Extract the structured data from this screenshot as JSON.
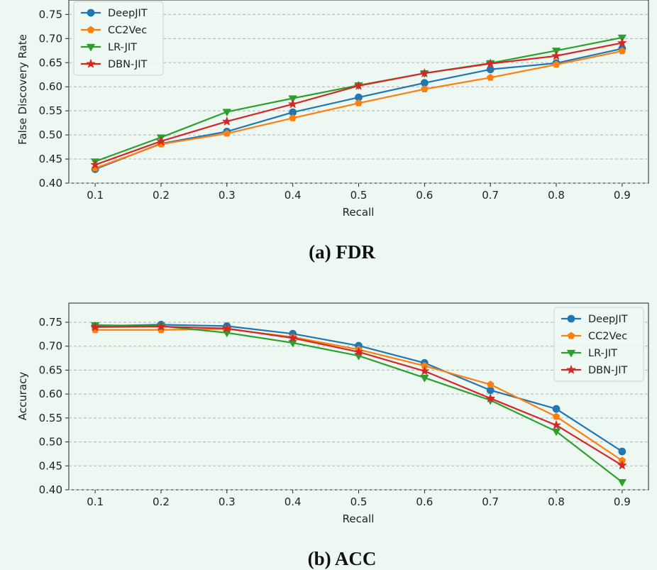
{
  "colors": {
    "DeepJIT": "#1f77b4",
    "CC2Vec": "#ff7f0e",
    "LR-JIT": "#2ca02c",
    "DBN-JIT": "#d62728"
  },
  "chart_data": [
    {
      "type": "line",
      "caption": "(a) FDR",
      "xlabel": "Recall",
      "ylabel": "False Discovery Rate",
      "x": [
        0.1,
        0.2,
        0.3,
        0.4,
        0.5,
        0.6,
        0.7,
        0.8,
        0.9
      ],
      "x_ticks": [
        "0.1",
        "0.2",
        "0.3",
        "0.4",
        "0.5",
        "0.6",
        "0.7",
        "0.8",
        "0.9"
      ],
      "ylim": [
        0.4,
        0.78
      ],
      "y_ticks": [
        "0.40",
        "0.45",
        "0.50",
        "0.55",
        "0.60",
        "0.65",
        "0.70",
        "0.75"
      ],
      "grid": "horizontal dashed",
      "legend": "top-left",
      "series": [
        {
          "name": "DeepJIT",
          "marker": "circle",
          "values": [
            0.429,
            0.482,
            0.507,
            0.547,
            0.578,
            0.608,
            0.636,
            0.649,
            0.679
          ]
        },
        {
          "name": "CC2Vec",
          "marker": "pentagon",
          "values": [
            0.431,
            0.481,
            0.503,
            0.535,
            0.566,
            0.595,
            0.619,
            0.646,
            0.674
          ]
        },
        {
          "name": "LR-JIT",
          "marker": "triangle-down",
          "values": [
            0.445,
            0.495,
            0.548,
            0.576,
            0.603,
            0.628,
            0.649,
            0.675,
            0.702
          ]
        },
        {
          "name": "DBN-JIT",
          "marker": "star",
          "values": [
            0.438,
            0.487,
            0.528,
            0.564,
            0.602,
            0.628,
            0.648,
            0.664,
            0.691
          ]
        }
      ]
    },
    {
      "type": "line",
      "caption": "(b) ACC",
      "xlabel": "Recall",
      "ylabel": "Accuracy",
      "x": [
        0.1,
        0.2,
        0.3,
        0.4,
        0.5,
        0.6,
        0.7,
        0.8,
        0.9
      ],
      "x_ticks": [
        "0.1",
        "0.2",
        "0.3",
        "0.4",
        "0.5",
        "0.6",
        "0.7",
        "0.8",
        "0.9"
      ],
      "ylim": [
        0.4,
        0.79
      ],
      "y_ticks": [
        "0.40",
        "0.45",
        "0.50",
        "0.55",
        "0.60",
        "0.65",
        "0.70",
        "0.75"
      ],
      "grid": "horizontal dashed",
      "legend": "top-right",
      "series": [
        {
          "name": "DeepJIT",
          "marker": "circle",
          "values": [
            0.742,
            0.745,
            0.742,
            0.726,
            0.701,
            0.665,
            0.608,
            0.569,
            0.48
          ]
        },
        {
          "name": "CC2Vec",
          "marker": "pentagon",
          "values": [
            0.734,
            0.734,
            0.736,
            0.719,
            0.693,
            0.659,
            0.62,
            0.553,
            0.461
          ]
        },
        {
          "name": "LR-JIT",
          "marker": "triangle-down",
          "values": [
            0.744,
            0.742,
            0.728,
            0.707,
            0.68,
            0.634,
            0.587,
            0.522,
            0.416
          ]
        },
        {
          "name": "DBN-JIT",
          "marker": "star",
          "values": [
            0.74,
            0.741,
            0.737,
            0.717,
            0.688,
            0.648,
            0.591,
            0.535,
            0.451
          ]
        }
      ]
    }
  ]
}
